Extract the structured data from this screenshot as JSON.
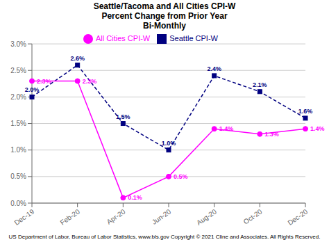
{
  "chart_data": {
    "type": "line",
    "title": "Seattle/Tacoma and All Cities CPI-W\nPercent Change from Prior Year\nBi-Monthly",
    "categories": [
      "Dec-19",
      "Feb-20",
      "Apr-20",
      "Jun-20",
      "Aug-20",
      "Oct-20",
      "Dec-20"
    ],
    "series": [
      {
        "name": "Seattle CPI-W",
        "color": "#000080",
        "marker": "square",
        "line_style": "dashed",
        "values": [
          2.0,
          2.6,
          1.5,
          1.0,
          2.4,
          2.1,
          1.6
        ],
        "value_labels": [
          "2.0%",
          "2.6%",
          "1.5%",
          "1.0%",
          "2.4%",
          "2.1%",
          "1.6%"
        ]
      },
      {
        "name": "All Cities CPI-W",
        "color": "#FF00FF",
        "marker": "circle",
        "line_style": "solid",
        "values": [
          2.3,
          2.3,
          0.1,
          0.5,
          1.4,
          1.3,
          1.4
        ],
        "value_labels": [
          "2.3%",
          "2.3%",
          "0.1%",
          "0.5%",
          "1.4%",
          "1.3%",
          "1.4%"
        ]
      }
    ],
    "ylim": [
      0.0,
      3.0
    ],
    "yticks": [
      {
        "value": 0.0,
        "label": "0.0%"
      },
      {
        "value": 0.5,
        "label": "0.5%"
      },
      {
        "value": 1.0,
        "label": "1.0%"
      },
      {
        "value": 1.5,
        "label": "1.5%"
      },
      {
        "value": 2.0,
        "label": "2.0%"
      },
      {
        "value": 2.5,
        "label": "2.5%"
      },
      {
        "value": 3.0,
        "label": "3.0%"
      }
    ],
    "grid": true,
    "legend": "top",
    "data_labels": true,
    "footer": "US Department of Labor, Bureau of Labor Statistics, www.bls.gov    Copyright © 2021 Cline and Associates.  All Rights Reserved."
  }
}
